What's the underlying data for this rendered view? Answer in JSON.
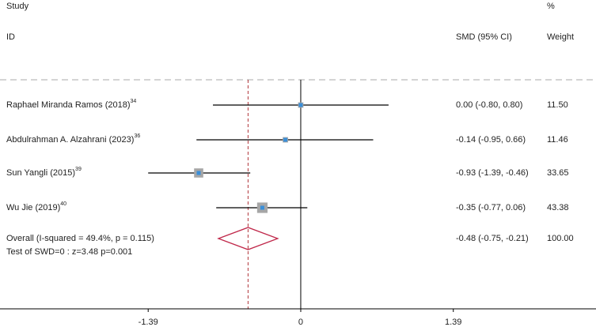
{
  "chart_data": {
    "type": "forest",
    "headers": {
      "study": "Study",
      "id": "ID",
      "percent": "%",
      "smd": "SMD (95% CI)",
      "weight": "Weight"
    },
    "studies": [
      {
        "name": "Raphael Miranda Ramos (2018)",
        "ref": "34",
        "values": [
          0.0,
          -0.8,
          0.8
        ],
        "value_label": "0.00 (-0.80, 0.80)",
        "weight": 11.5,
        "weight_label": "11.50"
      },
      {
        "name": "Abdulrahman A. Alzahrani (2023)",
        "ref": "36",
        "values": [
          -0.14,
          -0.95,
          0.66
        ],
        "value_label": "-0.14 (-0.95, 0.66)",
        "weight": 11.46
      },
      {
        "name": "Sun Yangli (2015)",
        "ref": "39",
        "values": [
          -0.93,
          -1.39,
          -0.46
        ],
        "value_label": "-0.93 (-1.39, -0.46)",
        "weight": 33.65
      },
      {
        "name": "Wu Jie (2019)",
        "ref": "40",
        "values": [
          -0.35,
          -0.77,
          0.06
        ],
        "value_label": "-0.35 (-0.77, 0.06)",
        "weight": 43.38
      }
    ],
    "overall": {
      "name": "Overall  (I-squared = 49.4%, p = 0.115)",
      "test": "Test of SWD=0 : z=3.48 p=0.001",
      "values": [
        -0.48,
        -0.75,
        -0.21
      ],
      "value_label": "-0.48 (-0.75, -0.21)",
      "weight": 100,
      "weight_label": "100.00"
    },
    "xlim": [
      -2.74,
      2.69
    ],
    "xticks": [
      -1.39,
      0,
      1.39
    ],
    "marker_color": "#a6a6a6",
    "point_color": "#3a8fd9",
    "diamond_color": "#c0284a",
    "ref_line_color": "#b0353a"
  }
}
